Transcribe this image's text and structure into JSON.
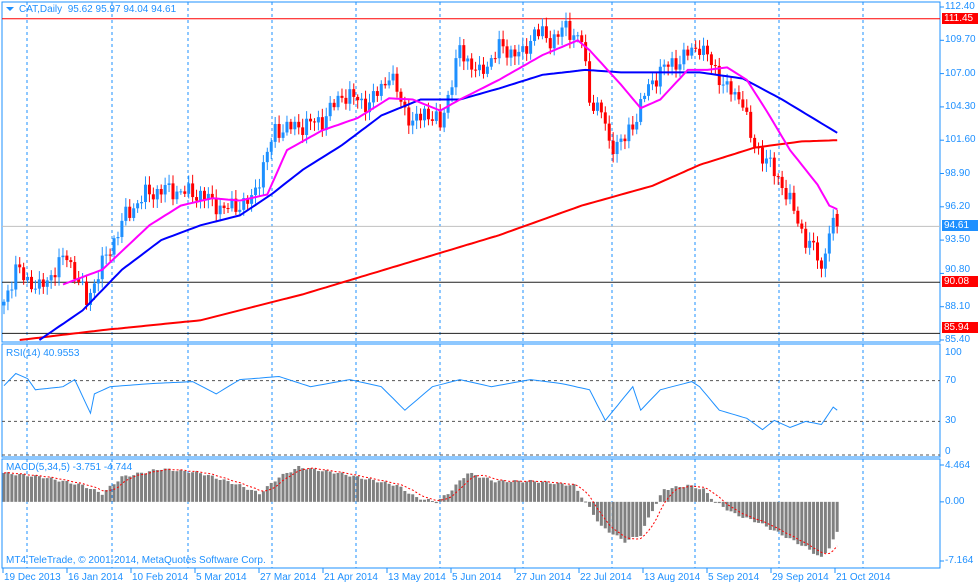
{
  "header": {
    "symbol_tf": "CAT,Daily",
    "ohlc": "95.62 95.97 94.04 94.61"
  },
  "rsi_label": "RSI(14) 40.9553",
  "macd_label": "MACD(5,34,5) -3.751 -4.744",
  "copyright": "MT4 TeleTrade, © 2001-2014, MetaQuotes Software Corp.",
  "colors": {
    "bull": "#1e90ff",
    "bear": "#ff0000",
    "ma_fast": "#ff00ff",
    "ma_mid": "#0000ff",
    "ma_slow": "#ff0000",
    "axis": "#1e90ff"
  },
  "chart_data": {
    "type": "candlestick",
    "title": "CAT,Daily",
    "ylim": [
      85.4,
      112.4
    ],
    "price_ticks": [
      "112.40",
      "109.70",
      "107.00",
      "104.30",
      "101.60",
      "98.90",
      "96.20",
      "93.50",
      "90.80",
      "88.10",
      "85.40"
    ],
    "price_levels": [
      {
        "label": "111.45",
        "value": 111.45,
        "kind": "line"
      },
      {
        "label": "94.61",
        "value": 94.61,
        "kind": "current"
      },
      {
        "label": "90.08",
        "value": 90.08,
        "kind": "line"
      },
      {
        "label": "85.94",
        "value": 85.94,
        "kind": "line"
      }
    ],
    "date_labels": [
      "19 Dec 2013",
      "16 Jan 2014",
      "10 Feb 2014",
      "5 Mar 2014",
      "27 Mar 2014",
      "21 Apr 2014",
      "13 May 2014",
      "5 Jun 2014",
      "27 Jun 2014",
      "22 Jul 2014",
      "13 Aug 2014",
      "5 Sep 2014",
      "29 Sep 2014",
      "21 Oct 2014"
    ],
    "bar_count": 213,
    "close_path": [
      [
        0,
        88.5
      ],
      [
        3,
        91.1
      ],
      [
        9,
        89.5
      ],
      [
        16,
        92.3
      ],
      [
        21,
        88.6
      ],
      [
        25,
        91.5
      ],
      [
        31,
        95.5
      ],
      [
        36,
        97.2
      ],
      [
        41,
        97.6
      ],
      [
        50,
        97.2
      ],
      [
        56,
        96
      ],
      [
        63,
        96.7
      ],
      [
        69,
        102.4
      ],
      [
        76,
        102.8
      ],
      [
        81,
        103.2
      ],
      [
        86,
        105.3
      ],
      [
        90,
        104.9
      ],
      [
        93,
        104.5
      ],
      [
        98,
        106.9
      ],
      [
        104,
        102.8
      ],
      [
        107,
        104
      ],
      [
        111,
        102.8
      ],
      [
        116,
        108.9
      ],
      [
        121,
        106.9
      ],
      [
        126,
        109.1
      ],
      [
        132,
        108.5
      ],
      [
        135,
        110.5
      ],
      [
        139,
        109.7
      ],
      [
        143,
        110.7
      ],
      [
        147,
        109.7
      ],
      [
        149,
        104.9
      ],
      [
        152,
        104
      ],
      [
        154,
        101.2
      ],
      [
        158,
        101.6
      ],
      [
        161,
        103.6
      ],
      [
        163,
        105.3
      ],
      [
        167,
        107.3
      ],
      [
        172,
        108.1
      ],
      [
        177,
        109.3
      ],
      [
        181,
        107.3
      ],
      [
        184,
        105.7
      ],
      [
        188,
        104.9
      ],
      [
        190,
        101.6
      ],
      [
        194,
        100
      ],
      [
        198,
        98
      ],
      [
        202,
        95.1
      ],
      [
        204,
        93.5
      ],
      [
        207,
        92.3
      ],
      [
        208,
        91.1
      ],
      [
        210,
        94.3
      ],
      [
        212,
        94.61
      ]
    ],
    "last_bar": {
      "open": 95.62,
      "high": 95.97,
      "low": 94.04,
      "close": 94.61
    },
    "ma_fast": [
      [
        15,
        89.9
      ],
      [
        25,
        91.1
      ],
      [
        37,
        94.7
      ],
      [
        45,
        96.3
      ],
      [
        53,
        96.9
      ],
      [
        60,
        96.7
      ],
      [
        67,
        97.2
      ],
      [
        72,
        100.8
      ],
      [
        81,
        102.4
      ],
      [
        90,
        103.4
      ],
      [
        98,
        105
      ],
      [
        104,
        104.9
      ],
      [
        111,
        104
      ],
      [
        116,
        104.9
      ],
      [
        126,
        106.5
      ],
      [
        137,
        108.5
      ],
      [
        146,
        109.7
      ],
      [
        149,
        108.9
      ],
      [
        157,
        106.1
      ],
      [
        162,
        104.2
      ],
      [
        167,
        104.9
      ],
      [
        174,
        107.3
      ],
      [
        179,
        107.3
      ],
      [
        184,
        107.5
      ],
      [
        189,
        106.5
      ],
      [
        194,
        104
      ],
      [
        200,
        100.8
      ],
      [
        207,
        98
      ],
      [
        210,
        96.3
      ],
      [
        212,
        96
      ]
    ],
    "ma_mid": [
      [
        9,
        85.4
      ],
      [
        20,
        87.8
      ],
      [
        30,
        91.1
      ],
      [
        40,
        93.5
      ],
      [
        50,
        94.7
      ],
      [
        60,
        95.5
      ],
      [
        68,
        97.2
      ],
      [
        76,
        99.2
      ],
      [
        86,
        101.2
      ],
      [
        96,
        103.6
      ],
      [
        106,
        104.9
      ],
      [
        116,
        104.9
      ],
      [
        126,
        105.8
      ],
      [
        137,
        106.9
      ],
      [
        148,
        107.3
      ],
      [
        157,
        107.1
      ],
      [
        177,
        107.1
      ],
      [
        188,
        106.6
      ],
      [
        198,
        104.9
      ],
      [
        212,
        102.2
      ]
    ],
    "ma_slow": [
      [
        4,
        85.4
      ],
      [
        25,
        86.2
      ],
      [
        50,
        87
      ],
      [
        76,
        89.1
      ],
      [
        101,
        91.5
      ],
      [
        126,
        93.9
      ],
      [
        147,
        96.3
      ],
      [
        165,
        97.9
      ],
      [
        177,
        99.6
      ],
      [
        191,
        101
      ],
      [
        203,
        101.5
      ],
      [
        212,
        101.6
      ]
    ],
    "rsi": {
      "ticks": [
        "100",
        "70",
        "30",
        "0"
      ],
      "levels": [
        70,
        30
      ],
      "path": [
        [
          0,
          65
        ],
        [
          3,
          77
        ],
        [
          6,
          72
        ],
        [
          8,
          61
        ],
        [
          15,
          64
        ],
        [
          18,
          71
        ],
        [
          22,
          38
        ],
        [
          23,
          57
        ],
        [
          27,
          64
        ],
        [
          37,
          67
        ],
        [
          48,
          69
        ],
        [
          54,
          57
        ],
        [
          60,
          71
        ],
        [
          70,
          74
        ],
        [
          78,
          64
        ],
        [
          88,
          71
        ],
        [
          96,
          64
        ],
        [
          102,
          41
        ],
        [
          109,
          64
        ],
        [
          116,
          71
        ],
        [
          124,
          64
        ],
        [
          134,
          71
        ],
        [
          142,
          67
        ],
        [
          149,
          61
        ],
        [
          153,
          31
        ],
        [
          160,
          64
        ],
        [
          162,
          41
        ],
        [
          167,
          61
        ],
        [
          175,
          69
        ],
        [
          177,
          64
        ],
        [
          182,
          41
        ],
        [
          189,
          33
        ],
        [
          193,
          22
        ],
        [
          196,
          31
        ],
        [
          200,
          24
        ],
        [
          204,
          30
        ],
        [
          208,
          27
        ],
        [
          211,
          44
        ],
        [
          212,
          40.96
        ]
      ]
    },
    "macd": {
      "ticks": [
        "4.464",
        "0.00",
        "-7.164"
      ],
      "range": [
        -7.164,
        4.464
      ],
      "hist_path": [
        [
          0,
          3.5
        ],
        [
          10,
          3
        ],
        [
          20,
          2
        ],
        [
          25,
          1
        ],
        [
          30,
          3
        ],
        [
          40,
          4
        ],
        [
          50,
          3.5
        ],
        [
          60,
          2
        ],
        [
          65,
          1
        ],
        [
          70,
          3
        ],
        [
          75,
          4.2
        ],
        [
          85,
          3.5
        ],
        [
          95,
          2.5
        ],
        [
          100,
          2
        ],
        [
          105,
          0.5
        ],
        [
          110,
          0
        ],
        [
          113,
          1
        ],
        [
          118,
          3.5
        ],
        [
          125,
          2.5
        ],
        [
          135,
          2.5
        ],
        [
          145,
          2
        ],
        [
          148,
          0
        ],
        [
          152,
          -3
        ],
        [
          158,
          -4.8
        ],
        [
          162,
          -4
        ],
        [
          165,
          -1
        ],
        [
          168,
          1.5
        ],
        [
          174,
          2
        ],
        [
          178,
          1.5
        ],
        [
          181,
          0
        ],
        [
          186,
          -1.5
        ],
        [
          192,
          -2.5
        ],
        [
          198,
          -4
        ],
        [
          204,
          -5.5
        ],
        [
          208,
          -6.8
        ],
        [
          210,
          -5.5
        ],
        [
          212,
          -3.75
        ]
      ]
    }
  }
}
